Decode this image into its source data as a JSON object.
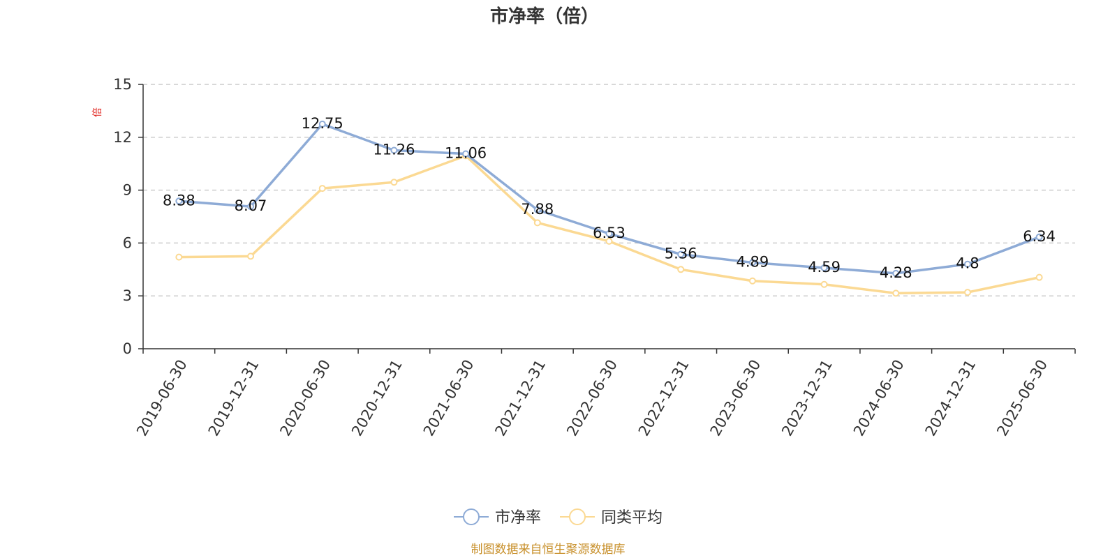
{
  "chart_data": {
    "type": "line",
    "title": "市净率（倍）",
    "ylabel": "倍",
    "xlabel": "",
    "ylim": [
      0,
      15
    ],
    "yticks": [
      0,
      3,
      6,
      9,
      12,
      15
    ],
    "grid": "horizontal-dashed",
    "legend_position": "bottom-center",
    "categories": [
      "2019-06-30",
      "2019-12-31",
      "2020-06-30",
      "2020-12-31",
      "2021-06-30",
      "2021-12-31",
      "2022-06-30",
      "2022-12-31",
      "2023-06-30",
      "2023-12-31",
      "2024-06-30",
      "2024-12-31",
      "2025-06-30"
    ],
    "series": [
      {
        "name": "市净率",
        "color": "#8eabd6",
        "values": [
          8.38,
          8.07,
          12.75,
          11.26,
          11.06,
          7.88,
          6.53,
          5.36,
          4.89,
          4.59,
          4.28,
          4.8,
          6.34
        ],
        "labels": [
          "8.38",
          "8.07",
          "12.75",
          "11.26",
          "11.06",
          "7.88",
          "6.53",
          "5.36",
          "4.89",
          "4.59",
          "4.28",
          "4.8",
          "6.34"
        ]
      },
      {
        "name": "同类平均",
        "color": "#fbd993",
        "values": [
          5.2,
          5.25,
          9.1,
          9.45,
          10.95,
          7.15,
          6.1,
          4.5,
          3.85,
          3.65,
          3.15,
          3.2,
          4.05
        ]
      }
    ],
    "source": "制图数据来自恒生聚源数据库"
  }
}
